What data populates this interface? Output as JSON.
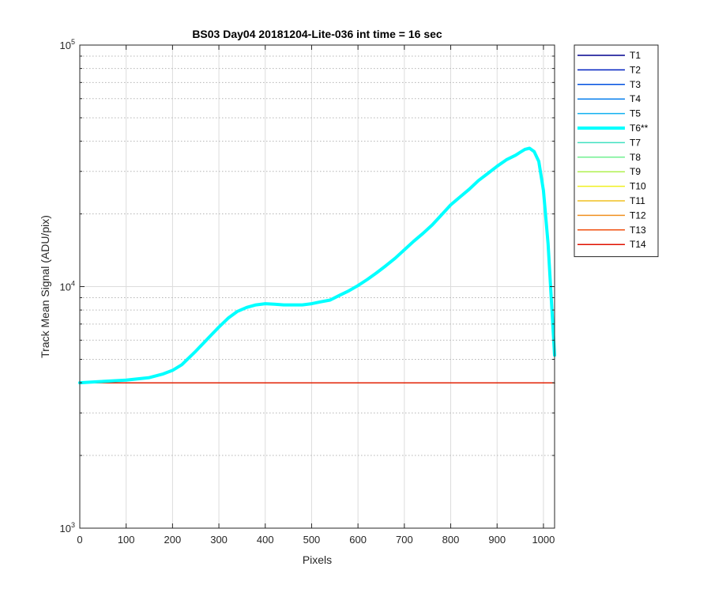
{
  "chart_data": {
    "type": "line",
    "title": "BS03 Day04 20181204-Lite-036 int time = 16 sec",
    "xlabel": "Pixels",
    "ylabel": "Track Mean Signal (ADU/pix)",
    "x_scale": "linear",
    "y_scale": "log",
    "xlim": [
      0,
      1024
    ],
    "ylim": [
      1000,
      100000
    ],
    "x_ticks": [
      0,
      100,
      200,
      300,
      400,
      500,
      600,
      700,
      800,
      900,
      1000
    ],
    "x_tick_labels": [
      "0",
      "100",
      "200",
      "300",
      "400",
      "500",
      "600",
      "700",
      "800",
      "900",
      "1000"
    ],
    "y_ticks": [
      1000,
      10000,
      100000
    ],
    "y_tick_base": "10",
    "y_tick_exponents": [
      "3",
      "4",
      "5"
    ],
    "grid": true,
    "legend_position": "outside-right",
    "series": [
      {
        "name": "T1",
        "color": "#00008f",
        "highlight": false,
        "x": [
          0,
          1024
        ],
        "y": [
          4000,
          4000
        ]
      },
      {
        "name": "T2",
        "color": "#0020c0",
        "highlight": false,
        "x": [
          0,
          1024
        ],
        "y": [
          4000,
          4000
        ]
      },
      {
        "name": "T3",
        "color": "#0050e0",
        "highlight": false,
        "x": [
          0,
          1024
        ],
        "y": [
          4000,
          4000
        ]
      },
      {
        "name": "T4",
        "color": "#0a80ee",
        "highlight": false,
        "x": [
          0,
          1024
        ],
        "y": [
          4000,
          4000
        ]
      },
      {
        "name": "T5",
        "color": "#10b0f0",
        "highlight": false,
        "x": [
          0,
          1024
        ],
        "y": [
          4000,
          4000
        ]
      },
      {
        "name": "T6**",
        "color": "#00ffff",
        "highlight": true,
        "x": [
          0,
          50,
          100,
          150,
          180,
          200,
          220,
          250,
          280,
          300,
          320,
          340,
          360,
          380,
          400,
          420,
          440,
          460,
          480,
          500,
          520,
          540,
          560,
          580,
          600,
          620,
          640,
          660,
          680,
          700,
          720,
          740,
          760,
          780,
          800,
          820,
          840,
          860,
          880,
          900,
          920,
          940,
          950,
          960,
          970,
          980,
          990,
          1000,
          1010,
          1020,
          1024
        ],
        "y": [
          4000,
          4050,
          4100,
          4200,
          4350,
          4500,
          4750,
          5400,
          6200,
          6800,
          7400,
          7900,
          8200,
          8400,
          8500,
          8450,
          8400,
          8400,
          8400,
          8500,
          8650,
          8800,
          9200,
          9600,
          10100,
          10700,
          11400,
          12200,
          13100,
          14200,
          15400,
          16600,
          18000,
          19800,
          21800,
          23500,
          25300,
          27500,
          29400,
          31500,
          33500,
          35000,
          36000,
          37000,
          37400,
          36200,
          33000,
          25000,
          15000,
          7000,
          5200
        ]
      },
      {
        "name": "T7",
        "color": "#40e0c0",
        "highlight": false,
        "x": [
          0,
          1024
        ],
        "y": [
          4000,
          4000
        ]
      },
      {
        "name": "T8",
        "color": "#70f090",
        "highlight": false,
        "x": [
          0,
          1024
        ],
        "y": [
          4000,
          4000
        ]
      },
      {
        "name": "T9",
        "color": "#b0f050",
        "highlight": false,
        "x": [
          0,
          1024
        ],
        "y": [
          4000,
          4000
        ]
      },
      {
        "name": "T10",
        "color": "#f0f020",
        "highlight": false,
        "x": [
          0,
          1024
        ],
        "y": [
          4000,
          4000
        ]
      },
      {
        "name": "T11",
        "color": "#f0c020",
        "highlight": false,
        "x": [
          0,
          1024
        ],
        "y": [
          4000,
          4000
        ]
      },
      {
        "name": "T12",
        "color": "#f09020",
        "highlight": false,
        "x": [
          0,
          1024
        ],
        "y": [
          4000,
          4000
        ]
      },
      {
        "name": "T13",
        "color": "#f05010",
        "highlight": false,
        "x": [
          0,
          1024
        ],
        "y": [
          4000,
          4000
        ]
      },
      {
        "name": "T14",
        "color": "#e01000",
        "highlight": false,
        "x": [
          0,
          1024
        ],
        "y": [
          4000,
          4000
        ]
      }
    ]
  }
}
